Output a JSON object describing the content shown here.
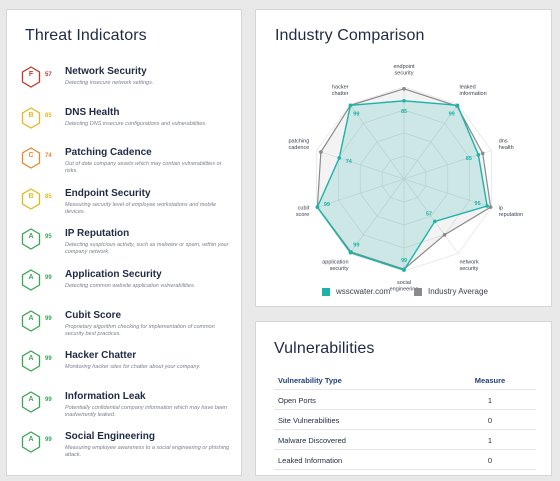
{
  "threat_indicators": {
    "title": "Threat Indicators",
    "items": [
      {
        "grade": "F",
        "score": "57",
        "name": "Network Security",
        "desc": "Detecting insecure network settings.",
        "color": "#c0392b"
      },
      {
        "grade": "B",
        "score": "85",
        "name": "DNS Health",
        "desc": "Detecting DNS insecure configurations and vulnerabilities.",
        "color": "#e6b820"
      },
      {
        "grade": "C",
        "score": "74",
        "name": "Patching Cadence",
        "desc": "Out of date company assets which may contain vulnerabilities or risks.",
        "color": "#e68a2e"
      },
      {
        "grade": "B",
        "score": "85",
        "name": "Endpoint Security",
        "desc": "Measuring security level of employee workstations and mobile devices.",
        "color": "#e6b820"
      },
      {
        "grade": "A",
        "score": "95",
        "name": "IP Reputation",
        "desc": "Detecting suspicious activity, such as malware or spam, within your company network.",
        "color": "#3aa655"
      },
      {
        "grade": "A",
        "score": "99",
        "name": "Application Security",
        "desc": "Detecting common website application vulnerabilities.",
        "color": "#3aa655"
      },
      {
        "grade": "A",
        "score": "99",
        "name": "Cubit Score",
        "desc": "Proprietary algorithm checking for implementation of common security best practices.",
        "color": "#3aa655"
      },
      {
        "grade": "A",
        "score": "99",
        "name": "Hacker Chatter",
        "desc": "Monitoring hacker sites for chatter about your company.",
        "color": "#3aa655"
      },
      {
        "grade": "A",
        "score": "99",
        "name": "Information Leak",
        "desc": "Potentially confidential company information which may have been inadvertently leaked.",
        "color": "#3aa655"
      },
      {
        "grade": "A",
        "score": "99",
        "name": "Social Engineering",
        "desc": "Measuring employee awareness to a social engineering or phishing attack.",
        "color": "#3aa655"
      }
    ]
  },
  "industry": {
    "title": "Industry Comparison",
    "legend_company": "wsscwater.com",
    "legend_average": "Industry Average",
    "company_color": "#1bb3a9",
    "average_color": "#8a8a8a"
  },
  "chart_data": {
    "type": "radar",
    "axes": [
      "endpoint security",
      "leaked information",
      "dns health",
      "ip reputation",
      "network security",
      "social engineering",
      "application security",
      "cubit score",
      "patching cadence",
      "hacker chatter"
    ],
    "range": [
      0,
      100
    ],
    "series": [
      {
        "name": "wsscwater.com",
        "values": [
          85,
          99,
          85,
          95,
          57,
          99,
          99,
          99,
          74,
          99
        ]
      },
      {
        "name": "Industry Average",
        "values": [
          98,
          98,
          90,
          99,
          75,
          98,
          98,
          99,
          95,
          99
        ]
      }
    ],
    "value_labels": [
      "85",
      "99",
      "85",
      "95",
      "57",
      "99",
      "99",
      "99",
      "74",
      "99"
    ]
  },
  "vulnerabilities": {
    "title": "Vulnerabilities",
    "col_type": "Vulnerability Type",
    "col_measure": "Measure",
    "rows": [
      {
        "type": "Open Ports",
        "measure": "1"
      },
      {
        "type": "Site Vulnerabilities",
        "measure": "0"
      },
      {
        "type": "Malware Discovered",
        "measure": "1"
      },
      {
        "type": "Leaked Information",
        "measure": "0"
      }
    ]
  }
}
